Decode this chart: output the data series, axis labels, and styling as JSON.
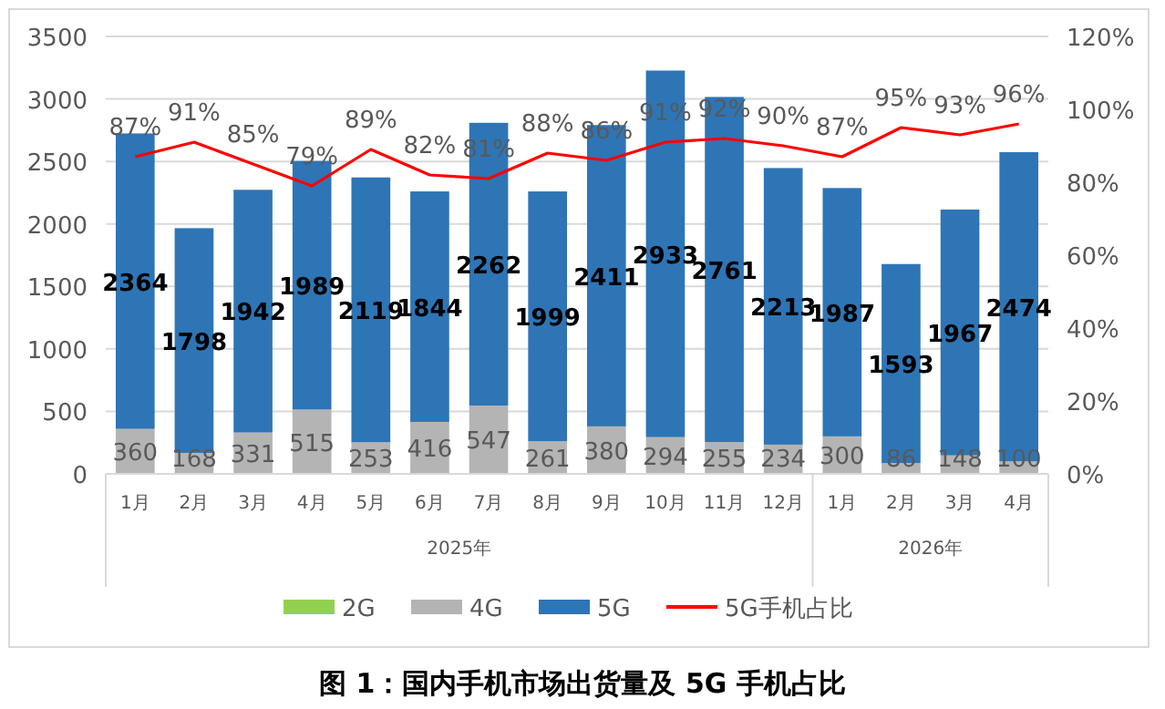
{
  "chart_data": {
    "type": "bar",
    "title": "图 1：国内手机市场出货量及 5G 手机占比",
    "categories": [
      "1月",
      "2月",
      "3月",
      "4月",
      "5月",
      "6月",
      "7月",
      "8月",
      "9月",
      "10月",
      "11月",
      "12月",
      "1月",
      "2月",
      "3月",
      "4月"
    ],
    "stacked": true,
    "series": [
      {
        "name": "2G",
        "color": "#92d050",
        "values": [
          0,
          0,
          0,
          0,
          0,
          0,
          0,
          0,
          0,
          0,
          0,
          0,
          0,
          0,
          0,
          0
        ]
      },
      {
        "name": "4G",
        "color": "#b4b4b4",
        "values": [
          360,
          168,
          331,
          515,
          253,
          416,
          547,
          261,
          380,
          294,
          255,
          234,
          300,
          86,
          148,
          100
        ],
        "value_labels": [
          "360",
          "168",
          "331",
          "515",
          "253",
          "416",
          "547",
          "261",
          "380",
          "294",
          "255",
          "234",
          "300",
          "86",
          "148",
          "100"
        ]
      },
      {
        "name": "5G",
        "color": "#2e75b6",
        "values": [
          2364,
          1798,
          1942,
          1989,
          2119,
          1844,
          2262,
          1999,
          2411,
          2933,
          2761,
          2213,
          1987,
          1593,
          1967,
          2474
        ],
        "value_labels": [
          "2364",
          "1798",
          "1942",
          "1989",
          "2119",
          "1844",
          "2262",
          "1999",
          "2411",
          "2933",
          "2761",
          "2213",
          "1987",
          "1593",
          "1967",
          "2474"
        ]
      },
      {
        "name": "5G手机占比",
        "type": "line",
        "axis": "y2",
        "color": "#ff0000",
        "values": [
          87,
          91,
          85,
          79,
          89,
          82,
          81,
          88,
          86,
          91,
          92,
          90,
          87,
          95,
          93,
          96
        ],
        "value_labels": [
          "87%",
          "91%",
          "85%",
          "79%",
          "89%",
          "82%",
          "81%",
          "88%",
          "86%",
          "91%",
          "92%",
          "90%",
          "87%",
          "95%",
          "93%",
          "96%"
        ]
      }
    ],
    "ylim": [
      0,
      3500
    ],
    "yticks": [
      0,
      500,
      1000,
      1500,
      2000,
      2500,
      3000,
      3500
    ],
    "y2lim": [
      0,
      120
    ],
    "y2ticks": [
      {
        "value": 0,
        "label": "0%"
      },
      {
        "value": 20,
        "label": "20%"
      },
      {
        "value": 40,
        "label": "40%"
      },
      {
        "value": 60,
        "label": "60%"
      },
      {
        "value": 80,
        "label": "80%"
      },
      {
        "value": 100,
        "label": "100%"
      },
      {
        "value": 120,
        "label": "120%"
      }
    ],
    "grid": "y",
    "legend": "bottom",
    "annotations": [
      "2025年",
      "2026年"
    ]
  }
}
